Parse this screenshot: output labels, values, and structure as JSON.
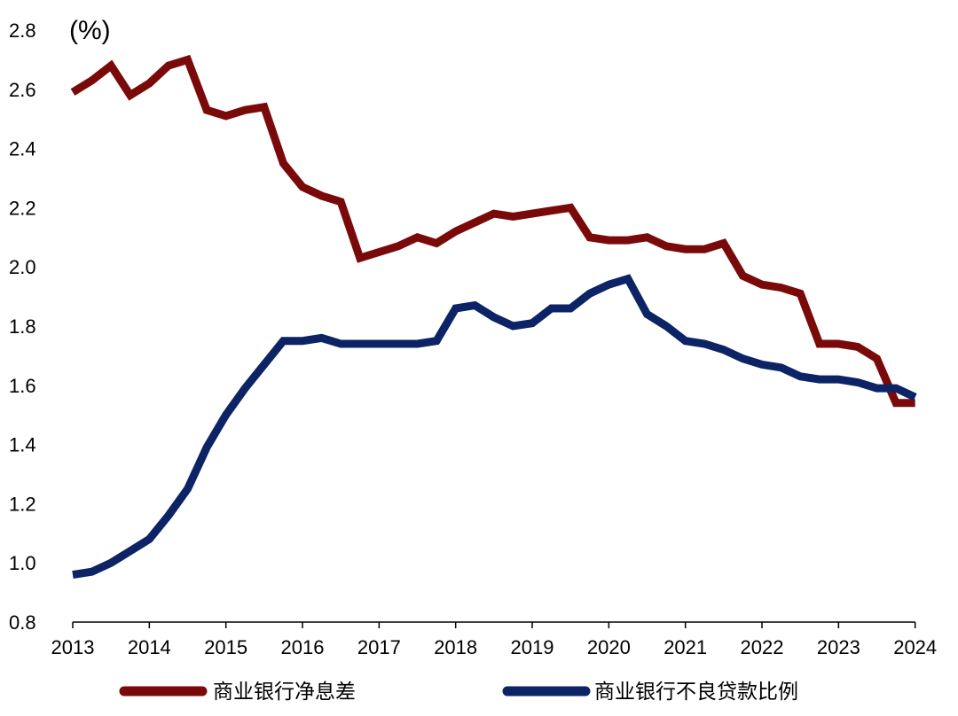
{
  "chart_data": {
    "type": "line",
    "title": "",
    "unit_label": "(%)",
    "xlabel": "",
    "ylabel": "",
    "ylim": [
      0.8,
      2.8
    ],
    "y_ticks": [
      "0.8",
      "1.0",
      "1.2",
      "1.4",
      "1.6",
      "1.8",
      "2.0",
      "2.2",
      "2.4",
      "2.6",
      "2.8"
    ],
    "x_tick_labels": [
      "2013",
      "2014",
      "2015",
      "2016",
      "2017",
      "2018",
      "2019",
      "2020",
      "2021",
      "2022",
      "2023",
      "2024"
    ],
    "x_range": [
      2013,
      2024.05
    ],
    "legend_position": "bottom",
    "series": [
      {
        "name": "商业银行净息差",
        "color": "#7a0a0a",
        "points": [
          [
            2013.0,
            2.59
          ],
          [
            2013.25,
            2.63
          ],
          [
            2013.5,
            2.68
          ],
          [
            2013.75,
            2.58
          ],
          [
            2014.0,
            2.62
          ],
          [
            2014.25,
            2.68
          ],
          [
            2014.5,
            2.7
          ],
          [
            2014.75,
            2.53
          ],
          [
            2015.0,
            2.51
          ],
          [
            2015.25,
            2.53
          ],
          [
            2015.5,
            2.54
          ],
          [
            2015.75,
            2.35
          ],
          [
            2016.0,
            2.27
          ],
          [
            2016.25,
            2.24
          ],
          [
            2016.5,
            2.22
          ],
          [
            2016.75,
            2.03
          ],
          [
            2017.0,
            2.05
          ],
          [
            2017.25,
            2.07
          ],
          [
            2017.5,
            2.1
          ],
          [
            2017.75,
            2.08
          ],
          [
            2018.0,
            2.12
          ],
          [
            2018.25,
            2.15
          ],
          [
            2018.5,
            2.18
          ],
          [
            2018.75,
            2.17
          ],
          [
            2019.0,
            2.18
          ],
          [
            2019.25,
            2.19
          ],
          [
            2019.5,
            2.2
          ],
          [
            2019.75,
            2.1
          ],
          [
            2020.0,
            2.09
          ],
          [
            2020.25,
            2.09
          ],
          [
            2020.5,
            2.1
          ],
          [
            2020.75,
            2.07
          ],
          [
            2021.0,
            2.06
          ],
          [
            2021.25,
            2.06
          ],
          [
            2021.5,
            2.08
          ],
          [
            2021.75,
            1.97
          ],
          [
            2022.0,
            1.94
          ],
          [
            2022.25,
            1.93
          ],
          [
            2022.5,
            1.91
          ],
          [
            2022.75,
            1.74
          ],
          [
            2023.0,
            1.74
          ],
          [
            2023.25,
            1.73
          ],
          [
            2023.5,
            1.69
          ],
          [
            2023.75,
            1.54
          ],
          [
            2024.0,
            1.54
          ]
        ]
      },
      {
        "name": "商业银行不良贷款比例",
        "color": "#0c2366",
        "points": [
          [
            2013.0,
            0.96
          ],
          [
            2013.25,
            0.97
          ],
          [
            2013.5,
            1.0
          ],
          [
            2013.75,
            1.04
          ],
          [
            2014.0,
            1.08
          ],
          [
            2014.25,
            1.16
          ],
          [
            2014.5,
            1.25
          ],
          [
            2014.75,
            1.39
          ],
          [
            2015.0,
            1.5
          ],
          [
            2015.25,
            1.59
          ],
          [
            2015.5,
            1.67
          ],
          [
            2015.75,
            1.75
          ],
          [
            2016.0,
            1.75
          ],
          [
            2016.25,
            1.76
          ],
          [
            2016.5,
            1.74
          ],
          [
            2016.75,
            1.74
          ],
          [
            2017.0,
            1.74
          ],
          [
            2017.25,
            1.74
          ],
          [
            2017.5,
            1.74
          ],
          [
            2017.75,
            1.75
          ],
          [
            2018.0,
            1.86
          ],
          [
            2018.25,
            1.87
          ],
          [
            2018.5,
            1.83
          ],
          [
            2018.75,
            1.8
          ],
          [
            2019.0,
            1.81
          ],
          [
            2019.25,
            1.86
          ],
          [
            2019.5,
            1.86
          ],
          [
            2019.75,
            1.91
          ],
          [
            2020.0,
            1.94
          ],
          [
            2020.25,
            1.96
          ],
          [
            2020.5,
            1.84
          ],
          [
            2020.75,
            1.8
          ],
          [
            2021.0,
            1.75
          ],
          [
            2021.25,
            1.74
          ],
          [
            2021.5,
            1.72
          ],
          [
            2021.75,
            1.69
          ],
          [
            2022.0,
            1.67
          ],
          [
            2022.25,
            1.66
          ],
          [
            2022.5,
            1.63
          ],
          [
            2022.75,
            1.62
          ],
          [
            2023.0,
            1.62
          ],
          [
            2023.25,
            1.61
          ],
          [
            2023.5,
            1.59
          ],
          [
            2023.75,
            1.59
          ],
          [
            2024.0,
            1.56
          ]
        ]
      }
    ]
  }
}
